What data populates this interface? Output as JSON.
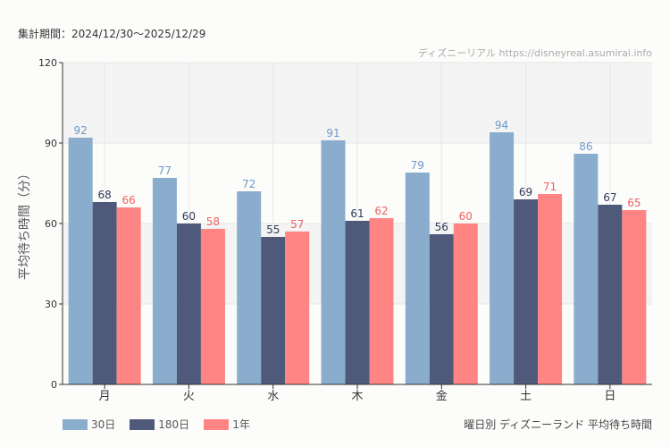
{
  "period_label": "集計期間：2024/12/30〜2025/12/29",
  "credit": "ディズニーリアル https://disneyreal.asumirai.info",
  "caption": "曜日別 ディズニーランド 平均待ち時間",
  "chart_data": {
    "type": "bar",
    "title": "",
    "ylabel": "平均待ち時間（分）",
    "xlabel": "",
    "ylim": [
      0,
      120
    ],
    "yticks": [
      0,
      30,
      60,
      90,
      120
    ],
    "grid": true,
    "legend_placement": "bottom-left",
    "categories": [
      "月",
      "火",
      "水",
      "木",
      "金",
      "土",
      "日"
    ],
    "series": [
      {
        "name": "30日",
        "color": "#8aadce",
        "label_color": "#6f97c6",
        "values": [
          92,
          77,
          72,
          91,
          79,
          94,
          86
        ]
      },
      {
        "name": "180日",
        "color": "#4f5a7b",
        "label_color": "#2f3a5a",
        "values": [
          68,
          60,
          55,
          61,
          56,
          69,
          67
        ]
      },
      {
        "name": "1年",
        "color": "#ff8484",
        "label_color": "#f06060",
        "values": [
          66,
          58,
          57,
          62,
          60,
          71,
          65
        ]
      }
    ]
  }
}
